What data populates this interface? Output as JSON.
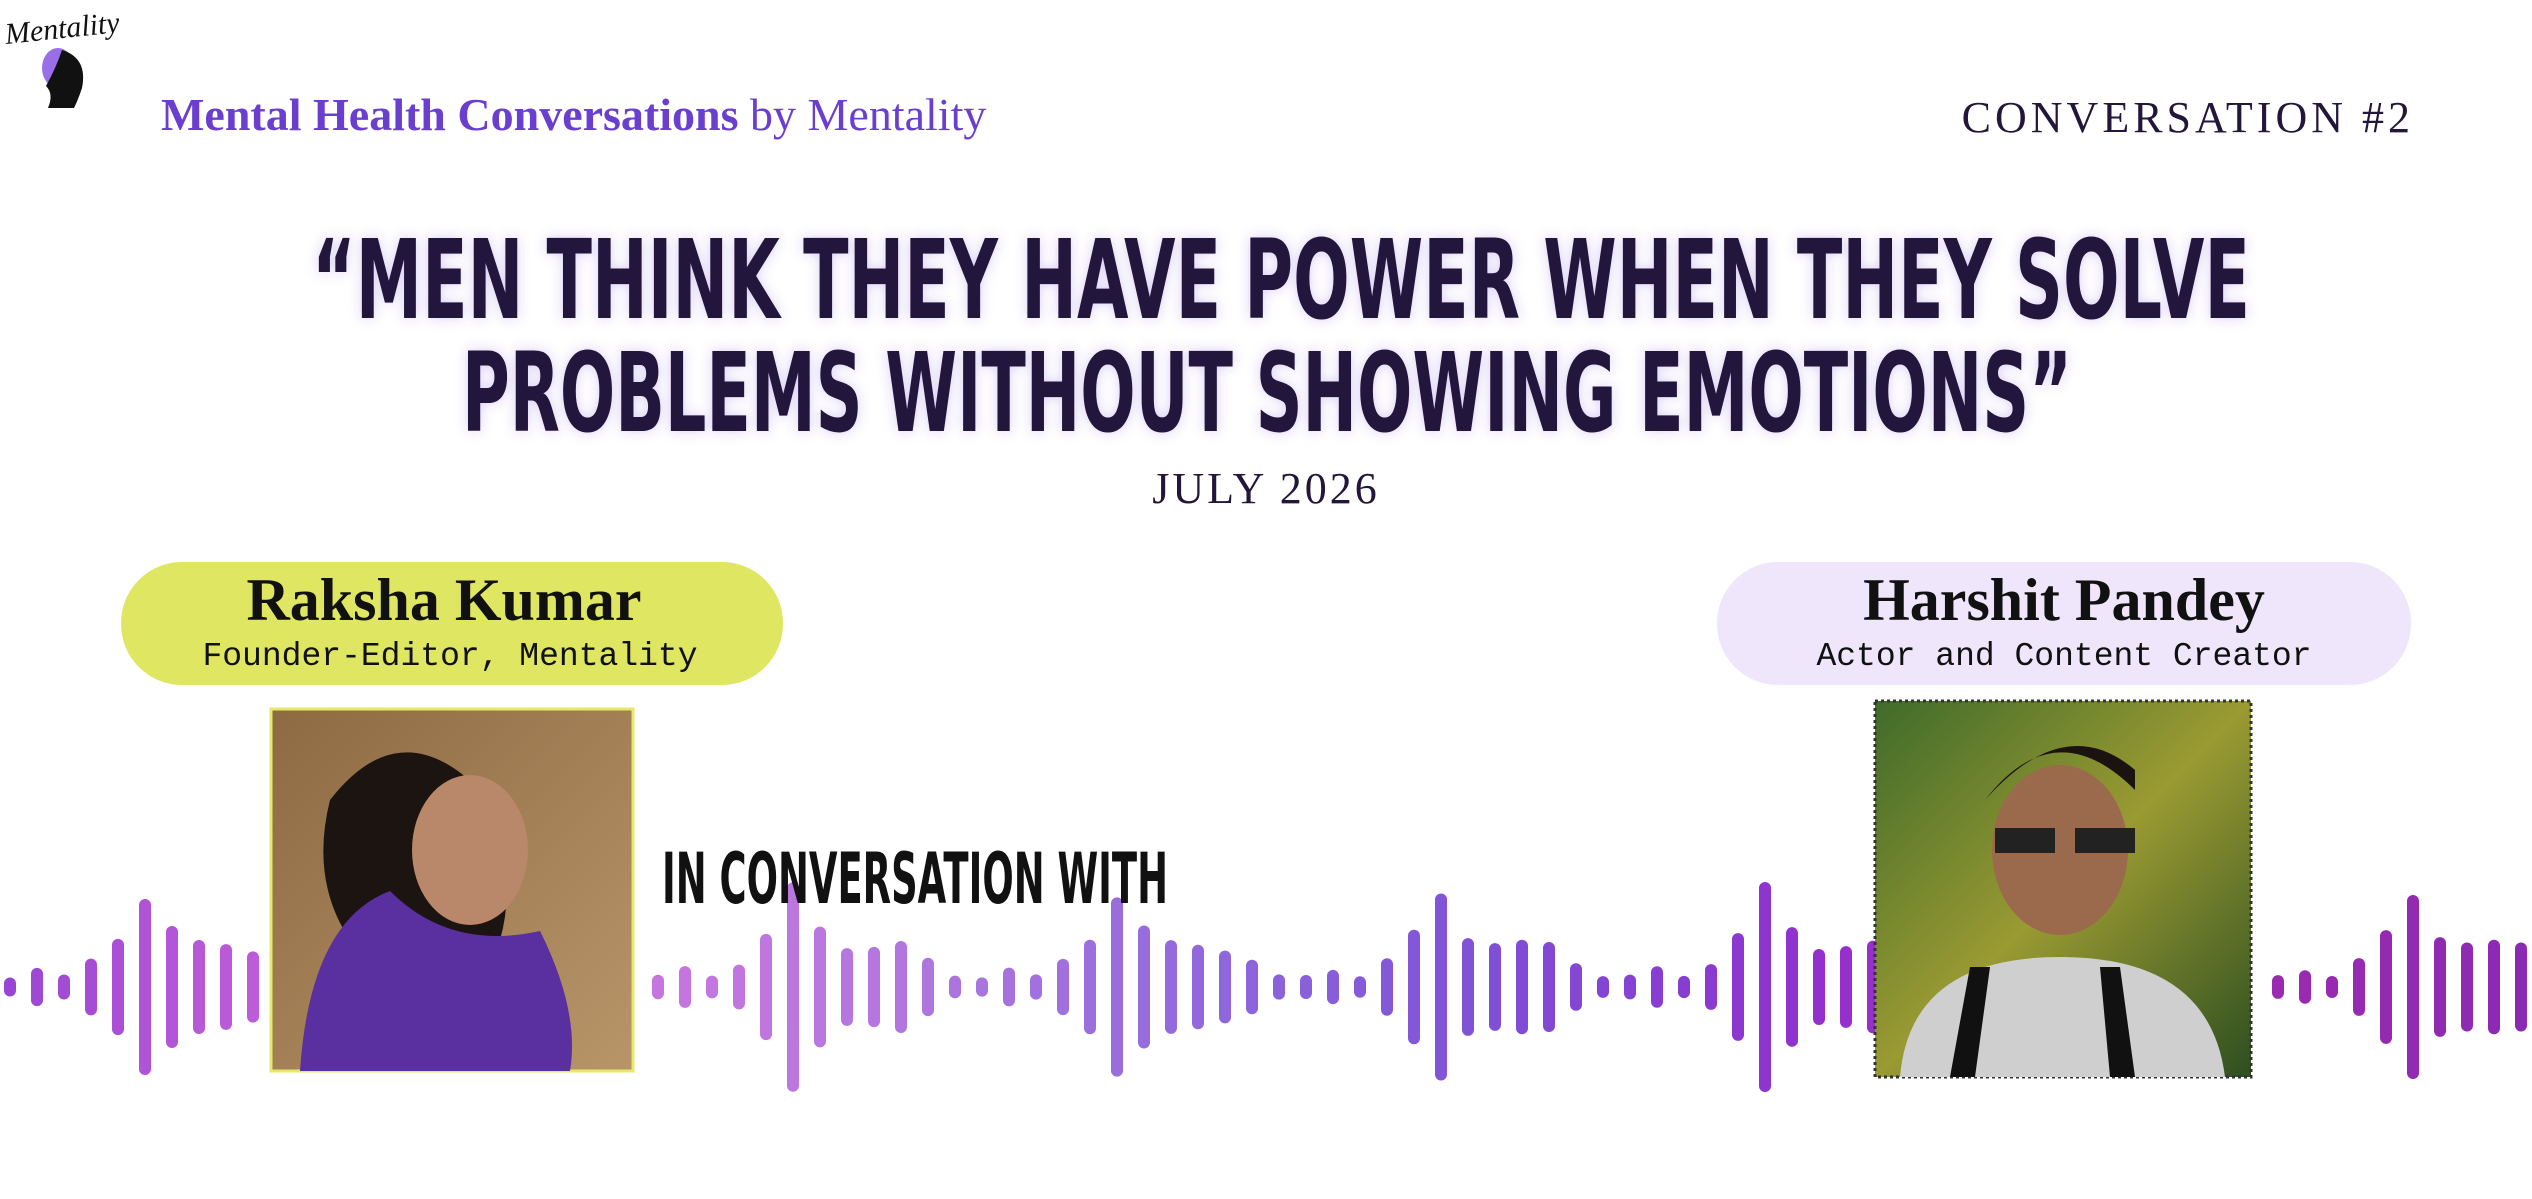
{
  "header": {
    "logo_text": "Mentality",
    "brand_bold": "Mental Health Conversations",
    "brand_rest": "by Mentality",
    "episode": "CONVERSATION #2"
  },
  "quote": {
    "lines": [
      "“MEN THINK THEY HAVE POWER WHEN THEY SOLVE",
      "PROBLEMS WITHOUT SHOWING EMOTIONS”"
    ]
  },
  "date": "JULY 2026",
  "host": {
    "name": "Raksha Kumar",
    "role": "Founder-Editor, Mentality"
  },
  "connector": "IN CONVERSATION WITH",
  "guest": {
    "name": "Harshit Pandey",
    "role": "Actor and Content Creator"
  }
}
